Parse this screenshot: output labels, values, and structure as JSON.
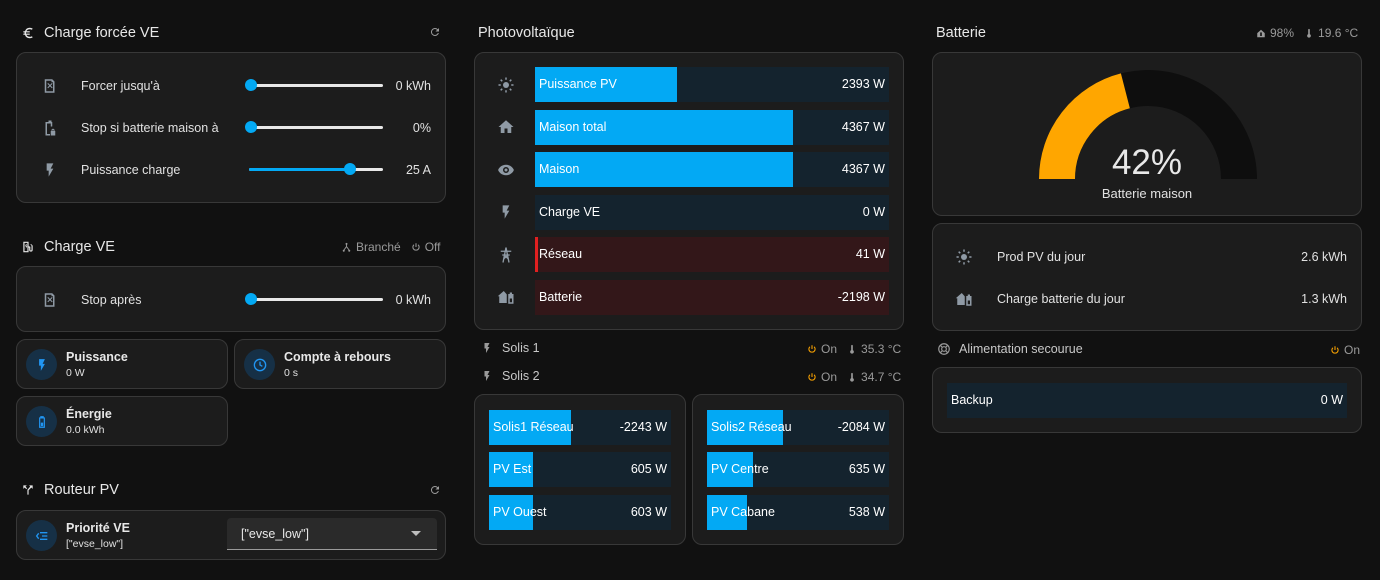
{
  "charge_forcee": {
    "title": "Charge forcée VE",
    "rows": [
      {
        "label": "Forcer jusqu'à",
        "value": "0 kWh",
        "level": 0
      },
      {
        "label": "Stop si batterie maison à",
        "value": "0%",
        "level": 0
      },
      {
        "label": "Puissance charge",
        "value": "25 A",
        "level": 0.75
      }
    ]
  },
  "charge_ve": {
    "title": "Charge VE",
    "status_branche": "Branché",
    "status_off": "Off",
    "stop_apres": {
      "label": "Stop après",
      "value": "0 kWh",
      "level": 0
    },
    "tiles": {
      "puissance": {
        "name": "Puissance",
        "value": "0 W"
      },
      "compte": {
        "name": "Compte à rebours",
        "value": "0 s"
      },
      "energie": {
        "name": "Énergie",
        "value": "0.0 kWh"
      }
    }
  },
  "routeur": {
    "title": "Routeur PV",
    "priorite": {
      "name": "Priorité VE",
      "value": "[\"evse_low\"]",
      "select_value": "[\"evse_low\"]"
    }
  },
  "pv": {
    "title": "Photovoltaïque",
    "rows": [
      {
        "label": "Puissance PV",
        "value": "2393 W",
        "fill": 0.4
      },
      {
        "label": "Maison total",
        "value": "4367 W",
        "fill": 0.73
      },
      {
        "label": "Maison",
        "value": "4367 W",
        "fill": 0.73
      },
      {
        "label": "Charge VE",
        "value": "0 W",
        "fill": 0
      },
      {
        "label": "Réseau",
        "value": "41 W",
        "fill": 0
      },
      {
        "label": "Batterie",
        "value": "-2198 W",
        "fill": 0
      }
    ],
    "solis1": {
      "label": "Solis 1",
      "status": "On",
      "temp": "35.3 °C"
    },
    "solis2": {
      "label": "Solis 2",
      "status": "On",
      "temp": "34.7 °C"
    },
    "left_rows": [
      {
        "label": "Solis1 Réseau",
        "value": "-2243 W",
        "fill": 0.45
      },
      {
        "label": "PV Est",
        "value": "605 W",
        "fill": 0.24
      },
      {
        "label": "PV Ouest",
        "value": "603 W",
        "fill": 0.24
      }
    ],
    "right_rows": [
      {
        "label": "Solis2 Réseau",
        "value": "-2084 W",
        "fill": 0.42
      },
      {
        "label": "PV Centre",
        "value": "635 W",
        "fill": 0.25
      },
      {
        "label": "PV Cabane",
        "value": "538 W",
        "fill": 0.22
      }
    ]
  },
  "batterie": {
    "title": "Batterie",
    "badge_level": "98%",
    "badge_temp": "19.6 °C",
    "gauge": {
      "value": 42,
      "display": "42%",
      "label": "Batterie maison"
    },
    "rows": [
      {
        "label": "Prod PV du jour",
        "value": "2.6 kWh"
      },
      {
        "label": "Charge batterie du jour",
        "value": "1.3 kWh"
      }
    ],
    "alimentation": {
      "title": "Alimentation secourue",
      "status": "On"
    },
    "backup": {
      "label": "Backup",
      "value": "0 W"
    }
  },
  "colors": {
    "accent": "#03a9f4",
    "gauge": "#ffa600",
    "negative": "#331719",
    "on": "#ffa600"
  }
}
